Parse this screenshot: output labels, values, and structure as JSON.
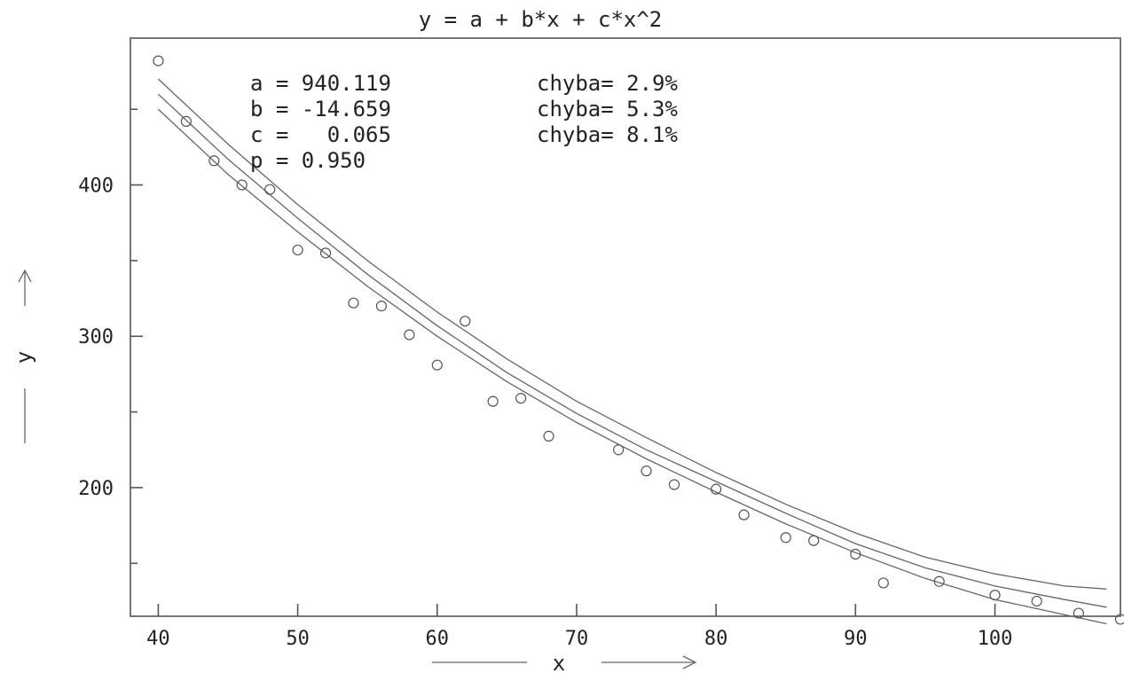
{
  "chart_data": {
    "type": "scatter",
    "title": "y = a + b*x + c*x^2",
    "xlabel": "x",
    "ylabel": "y",
    "xlim": [
      38,
      109
    ],
    "ylim": [
      115,
      497
    ],
    "xticks": [
      40,
      50,
      60,
      70,
      80,
      90,
      100
    ],
    "yticks": [
      200,
      300,
      400
    ],
    "yticks_minor": [
      150,
      250,
      350,
      450
    ],
    "grid": false,
    "parameters": [
      {
        "name": "a",
        "value": "940.119",
        "error": "2.9%"
      },
      {
        "name": "b",
        "value": "-14.659",
        "error": "5.3%"
      },
      {
        "name": "c",
        "value": "0.065",
        "error": "8.1%"
      },
      {
        "name": "p",
        "value": "0.950"
      }
    ],
    "param_lines": [
      {
        "label": "a = 940.119",
        "err": "chyba= 2.9%"
      },
      {
        "label": "b = -14.659",
        "err": "chyba= 5.3%"
      },
      {
        "label": "c =   0.065",
        "err": "chyba= 8.1%"
      },
      {
        "label": "p = 0.950",
        "err": ""
      }
    ],
    "points": {
      "x": [
        40,
        42,
        44,
        46,
        48,
        50,
        52,
        54,
        56,
        58,
        60,
        62,
        64,
        66,
        68,
        73,
        75,
        77,
        80,
        82,
        85,
        87,
        90,
        92,
        96,
        100,
        103,
        106,
        109
      ],
      "y": [
        482,
        442,
        416,
        400,
        397,
        357,
        355,
        322,
        320,
        301,
        281,
        310,
        257,
        259,
        234,
        225,
        211,
        202,
        199,
        182,
        167,
        165,
        156,
        137,
        138,
        129,
        125,
        117,
        113
      ]
    },
    "fit": {
      "x": [
        40,
        45,
        50,
        55,
        60,
        65,
        70,
        75,
        80,
        85,
        90,
        95,
        100,
        105,
        108
      ],
      "y": [
        460,
        417,
        378,
        341,
        307,
        276,
        249,
        225,
        204,
        183,
        163,
        147,
        135,
        126,
        121
      ]
    },
    "band_upper": {
      "x": [
        40,
        45,
        50,
        55,
        60,
        65,
        70,
        75,
        80,
        85,
        90,
        95,
        100,
        105,
        108
      ],
      "y": [
        470,
        427,
        387,
        350,
        316,
        285,
        257,
        233,
        210,
        189,
        170,
        154,
        143,
        135,
        133
      ]
    },
    "band_lower": {
      "x": [
        40,
        45,
        50,
        55,
        60,
        65,
        70,
        75,
        80,
        85,
        90,
        95,
        100,
        105,
        108
      ],
      "y": [
        450,
        407,
        369,
        333,
        300,
        270,
        243,
        219,
        197,
        176,
        157,
        140,
        126,
        116,
        110
      ]
    }
  }
}
